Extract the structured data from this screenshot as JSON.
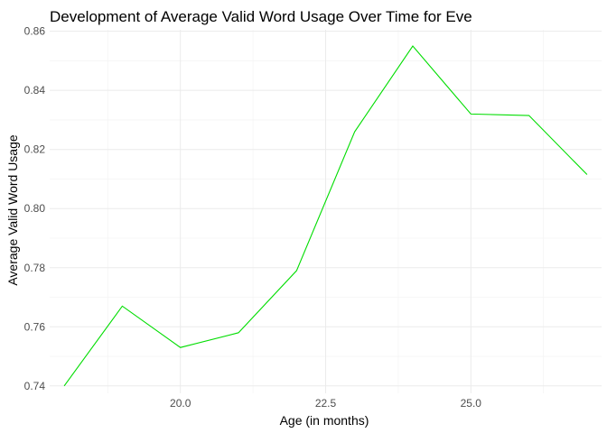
{
  "chart_data": {
    "type": "line",
    "title": "Development of Average Valid Word Usage Over Time for Eve",
    "xlabel": "Age (in months)",
    "ylabel": "Average Valid Word Usage",
    "xlim": [
      17.75,
      27.25
    ],
    "ylim": [
      0.7375,
      0.8605
    ],
    "x_ticks": [
      20.0,
      22.5,
      25.0
    ],
    "x_tick_labels": [
      "20.0",
      "22.5",
      "25.0"
    ],
    "y_ticks": [
      0.74,
      0.76,
      0.78,
      0.8,
      0.82,
      0.84,
      0.86
    ],
    "y_tick_labels": [
      "0.74",
      "0.76",
      "0.78",
      "0.80",
      "0.82",
      "0.84",
      "0.86"
    ],
    "grid": true,
    "series": [
      {
        "color": "#00dd00",
        "x": [
          18,
          19,
          20,
          21,
          22,
          23,
          24,
          25,
          26,
          27
        ],
        "y": [
          0.74,
          0.767,
          0.753,
          0.758,
          0.779,
          0.826,
          0.855,
          0.832,
          0.8315,
          0.8115
        ]
      }
    ]
  }
}
